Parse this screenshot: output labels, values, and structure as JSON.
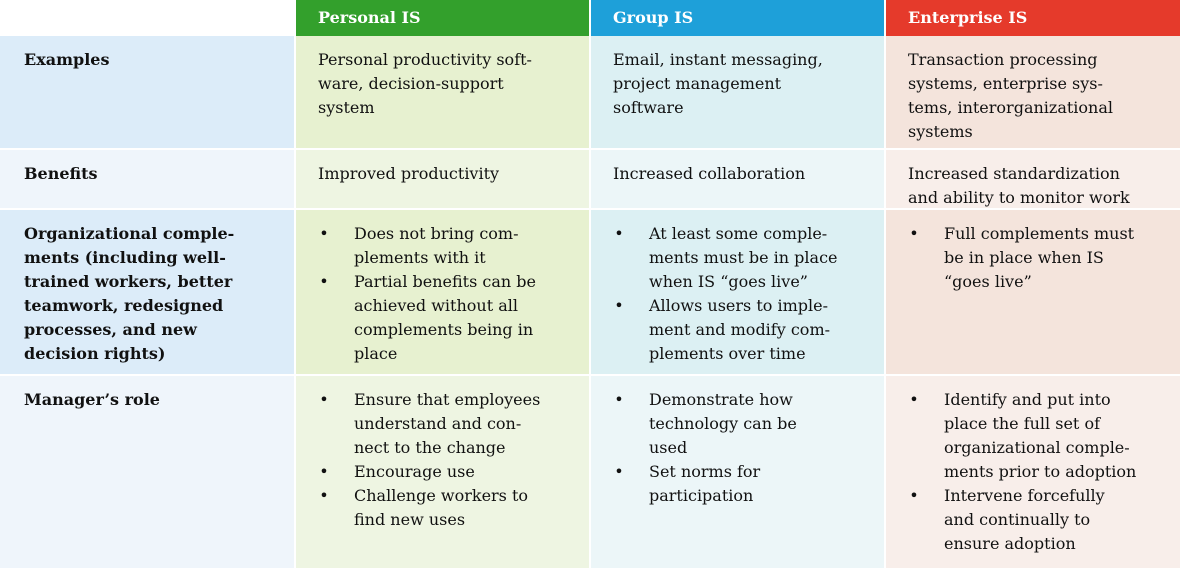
{
  "headers": {
    "blank": "",
    "personal": "Personal IS",
    "group": "Group IS",
    "enterprise": "Enterprise IS"
  },
  "rows": {
    "examples": {
      "label": "Examples",
      "personal": "Personal productivity soft-\nware, decision-support\nsystem",
      "group": "Email, instant messaging,\nproject management\nsoftware",
      "enterprise": "Transaction processing\nsystems, enterprise sys-\ntems, interorganizational\nsystems"
    },
    "benefits": {
      "label": "Benefits",
      "personal": "Improved productivity",
      "group": "Increased collaboration",
      "enterprise": "Increased standardization\nand ability to monitor work"
    },
    "complements": {
      "label": "Organizational comple-\nments (including well-\ntrained workers, better\nteamwork, redesigned\nprocesses, and new\ndecision rights)",
      "personal": [
        "Does not bring com-\nplements with it",
        "Partial benefits can be\nachieved without all\ncomplements being in\nplace"
      ],
      "group": [
        "At least some comple-\nments must be in place\nwhen IS “goes live”",
        "Allows users to imple-\nment and modify com-\nplements over time"
      ],
      "enterprise": [
        "Full complements must\nbe in place when IS\n“goes live”"
      ]
    },
    "manager": {
      "label": "Manager’s role",
      "personal": [
        "Ensure that employees\nunderstand and con-\nnect to the change",
        "Encourage use",
        "Challenge workers to\nfind new uses"
      ],
      "group": [
        "Demonstrate how\ntechnology can be\nused",
        "Set norms for\nparticipation"
      ],
      "enterprise": [
        "Identify and put into\nplace the full set of\norganizational comple-\nments prior to adoption",
        "Intervene forcefully\nand continually to\nensure adoption"
      ]
    }
  },
  "bullet_glyph": "•",
  "colors": {
    "personal_header": "#33a02c",
    "group_header": "#1ea0d9",
    "enterprise_header": "#e53a2b"
  }
}
